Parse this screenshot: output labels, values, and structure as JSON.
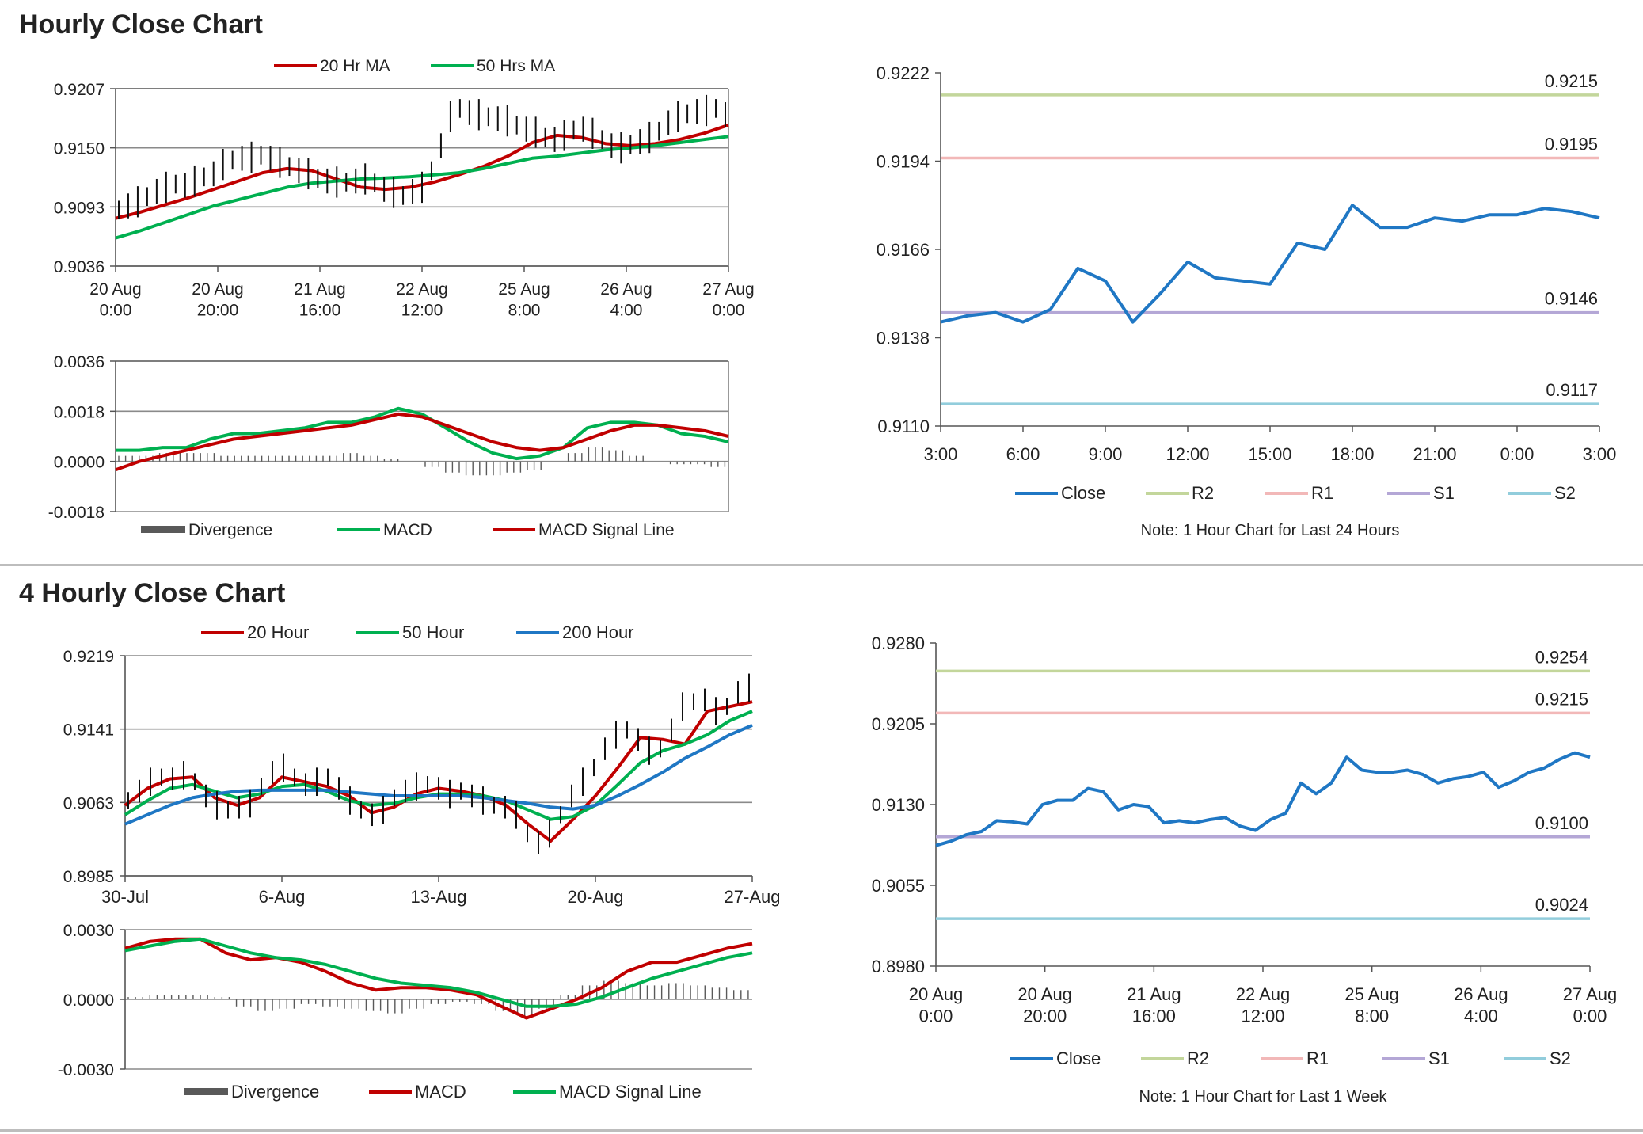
{
  "sections": [
    {
      "title": "Hourly Close Chart"
    },
    {
      "title": "4 Hourly Close Chart"
    }
  ],
  "chart_data": [
    {
      "id": "hourly-price",
      "type": "line",
      "title": "",
      "xlabel": "",
      "ylabel": "",
      "ylim": [
        0.9036,
        0.9207
      ],
      "yticks": [
        "0.9207",
        "0.9150",
        "0.9093",
        "0.9036"
      ],
      "xticks": [
        "20 Aug\n0:00",
        "20 Aug\n20:00",
        "21 Aug\n16:00",
        "22 Aug\n12:00",
        "25 Aug\n8:00",
        "26 Aug\n4:00",
        "27 Aug\n0:00"
      ],
      "legend": [
        {
          "name": "20 Hr MA",
          "color": "#c00000"
        },
        {
          "name": "50 Hrs MA",
          "color": "#00b050"
        }
      ],
      "legend_position": "top",
      "grid": "horizontal",
      "price_series": {
        "name": "",
        "color": "#111111",
        "values": [
          0.909,
          0.9094,
          0.9098,
          0.9103,
          0.9108,
          0.9112,
          0.9115,
          0.9114,
          0.9118,
          0.9122,
          0.9125,
          0.9134,
          0.9138,
          0.914,
          0.9141,
          0.9143,
          0.914,
          0.9136,
          0.9132,
          0.9128,
          0.9125,
          0.912,
          0.9118,
          0.9117,
          0.9117,
          0.9118,
          0.912,
          0.9116,
          0.911,
          0.9107,
          0.9104,
          0.9108,
          0.9112,
          0.9128,
          0.9152,
          0.918,
          0.9188,
          0.9184,
          0.9182,
          0.918,
          0.9178,
          0.9176,
          0.9172,
          0.9168,
          0.9165,
          0.916,
          0.9158,
          0.9162,
          0.9167,
          0.9168,
          0.9164,
          0.9158,
          0.9152,
          0.915,
          0.9153,
          0.9156,
          0.916,
          0.9166,
          0.9174,
          0.918,
          0.9183,
          0.9185,
          0.9186,
          0.9188,
          0.9182
        ]
      },
      "series": [
        {
          "name": "20 Hr MA",
          "color": "#c00000",
          "values": [
            0.9082,
            0.9088,
            0.9095,
            0.9102,
            0.911,
            0.9118,
            0.9126,
            0.913,
            0.9128,
            0.912,
            0.9112,
            0.911,
            0.9112,
            0.9117,
            0.9124,
            0.9132,
            0.9142,
            0.9155,
            0.9162,
            0.916,
            0.9154,
            0.9152,
            0.9154,
            0.9158,
            0.9164,
            0.9172
          ]
        },
        {
          "name": "50 Hrs MA",
          "color": "#00b050",
          "values": [
            0.9063,
            0.907,
            0.9078,
            0.9086,
            0.9094,
            0.91,
            0.9106,
            0.9112,
            0.9116,
            0.9118,
            0.912,
            0.9121,
            0.9122,
            0.9124,
            0.9126,
            0.913,
            0.9135,
            0.914,
            0.9142,
            0.9145,
            0.9148,
            0.915,
            0.9152,
            0.9155,
            0.9158,
            0.9161
          ]
        }
      ]
    },
    {
      "id": "hourly-macd",
      "type": "line",
      "title": "",
      "ylim": [
        -0.0018,
        0.0036
      ],
      "yticks": [
        "0.0036",
        "0.0018",
        "0.0000",
        "-0.0018"
      ],
      "legend": [
        {
          "name": "Divergence",
          "color": "#595959"
        },
        {
          "name": "MACD",
          "color": "#00b050"
        },
        {
          "name": "MACD Signal Line",
          "color": "#c00000"
        }
      ],
      "legend_position": "bottom",
      "grid": "horizontal",
      "divergence": [
        0.0002,
        0.0002,
        0.0003,
        0.0003,
        0.0003,
        0.0002,
        0.0002,
        0.0002,
        0.0002,
        0.0002,
        0.0002,
        0.0003,
        0.0002,
        0.0001,
        0.0,
        -0.0002,
        -0.0004,
        -0.0005,
        -0.0005,
        -0.0004,
        -0.0003,
        0.0,
        0.0003,
        0.0005,
        0.0004,
        0.0002,
        0.0,
        -0.0001,
        -0.0001,
        -0.0002
      ],
      "series": [
        {
          "name": "MACD",
          "color": "#00b050",
          "values": [
            0.0004,
            0.0004,
            0.0005,
            0.0005,
            0.0008,
            0.001,
            0.001,
            0.0011,
            0.0012,
            0.0014,
            0.0014,
            0.0016,
            0.0019,
            0.0017,
            0.0012,
            0.0007,
            0.0003,
            0.0001,
            0.0002,
            0.0005,
            0.0012,
            0.0014,
            0.0014,
            0.0013,
            0.001,
            0.0009,
            0.0007
          ]
        },
        {
          "name": "MACD Signal Line",
          "color": "#c00000",
          "values": [
            -0.0003,
            0.0,
            0.0002,
            0.0004,
            0.0006,
            0.0008,
            0.0009,
            0.001,
            0.0011,
            0.0012,
            0.0013,
            0.0015,
            0.0017,
            0.0016,
            0.0013,
            0.001,
            0.0007,
            0.0005,
            0.0004,
            0.0005,
            0.0008,
            0.0011,
            0.0013,
            0.0013,
            0.0012,
            0.0011,
            0.0009
          ]
        }
      ]
    },
    {
      "id": "hourly-levels",
      "type": "line",
      "title": "",
      "ylim": [
        0.911,
        0.9222
      ],
      "yticks": [
        "0.9222",
        "0.9194",
        "0.9166",
        "0.9138",
        "0.9110"
      ],
      "xticks": [
        "3:00",
        "6:00",
        "9:00",
        "12:00",
        "15:00",
        "18:00",
        "21:00",
        "0:00",
        "3:00"
      ],
      "legend": [
        {
          "name": "Close",
          "color": "#1f77c4"
        },
        {
          "name": "R2",
          "color": "#c3d69b"
        },
        {
          "name": "R1",
          "color": "#f2b8b8"
        },
        {
          "name": "S1",
          "color": "#b4a7d6"
        },
        {
          "name": "S2",
          "color": "#92cddc"
        }
      ],
      "legend_position": "bottom",
      "note": "Note: 1 Hour Chart for Last 24 Hours",
      "series": [
        {
          "name": "Close",
          "color": "#1f77c4",
          "values": [
            0.9143,
            0.9145,
            0.9146,
            0.9143,
            0.9147,
            0.916,
            0.9156,
            0.9143,
            0.9152,
            0.9162,
            0.9157,
            0.9156,
            0.9155,
            0.9168,
            0.9166,
            0.918,
            0.9173,
            0.9173,
            0.9176,
            0.9175,
            0.9177,
            0.9177,
            0.9179,
            0.9178,
            0.9176
          ]
        }
      ],
      "levels": [
        {
          "name": "R2",
          "value": 0.9215,
          "label": "0.9215",
          "color": "#c3d69b"
        },
        {
          "name": "R1",
          "value": 0.9195,
          "label": "0.9195",
          "color": "#f2b8b8"
        },
        {
          "name": "S1",
          "value": 0.9146,
          "label": "0.9146",
          "color": "#b4a7d6"
        },
        {
          "name": "S2",
          "value": 0.9117,
          "label": "0.9117",
          "color": "#92cddc"
        }
      ]
    },
    {
      "id": "four-hourly-price",
      "type": "line",
      "title": "",
      "ylim": [
        0.8985,
        0.9219
      ],
      "yticks": [
        "0.9219",
        "0.9141",
        "0.9063",
        "0.8985"
      ],
      "xticks": [
        "30-Jul",
        "6-Aug",
        "13-Aug",
        "20-Aug",
        "27-Aug"
      ],
      "legend": [
        {
          "name": "20 Hour",
          "color": "#c00000"
        },
        {
          "name": "50 Hour",
          "color": "#00b050"
        },
        {
          "name": "200 Hour",
          "color": "#1f77c4"
        }
      ],
      "legend_position": "top",
      "grid": "horizontal",
      "price_series": {
        "name": "",
        "color": "#111111",
        "values": [
          0.9065,
          0.9075,
          0.9085,
          0.909,
          0.9088,
          0.9092,
          0.9085,
          0.907,
          0.906,
          0.9055,
          0.9058,
          0.9062,
          0.908,
          0.9095,
          0.91,
          0.909,
          0.9082,
          0.9085,
          0.909,
          0.9078,
          0.9065,
          0.9055,
          0.905,
          0.9055,
          0.9068,
          0.9075,
          0.908,
          0.9082,
          0.9078,
          0.9072,
          0.9075,
          0.907,
          0.9065,
          0.906,
          0.9058,
          0.905,
          0.903,
          0.902,
          0.903,
          0.905,
          0.907,
          0.9085,
          0.91,
          0.912,
          0.9135,
          0.914,
          0.913,
          0.9118,
          0.912,
          0.914,
          0.9165,
          0.917,
          0.9172,
          0.916,
          0.9165,
          0.918,
          0.9185
        ]
      },
      "series": [
        {
          "name": "20 Hour",
          "color": "#c00000",
          "values": [
            0.906,
            0.9078,
            0.9088,
            0.909,
            0.9068,
            0.906,
            0.9068,
            0.909,
            0.9085,
            0.908,
            0.907,
            0.9052,
            0.9058,
            0.9072,
            0.9078,
            0.9075,
            0.907,
            0.906,
            0.904,
            0.9022,
            0.9045,
            0.907,
            0.91,
            0.9132,
            0.913,
            0.9125,
            0.916,
            0.9165,
            0.917
          ]
        },
        {
          "name": "50 Hour",
          "color": "#00b050",
          "values": [
            0.905,
            0.9065,
            0.9078,
            0.9082,
            0.9075,
            0.9068,
            0.9072,
            0.908,
            0.9082,
            0.9075,
            0.9065,
            0.906,
            0.9062,
            0.9068,
            0.9072,
            0.9072,
            0.907,
            0.9065,
            0.9055,
            0.9045,
            0.9048,
            0.906,
            0.9082,
            0.9105,
            0.9118,
            0.9125,
            0.9135,
            0.915,
            0.916
          ]
        },
        {
          "name": "200 Hour",
          "color": "#1f77c4",
          "values": [
            0.904,
            0.905,
            0.906,
            0.9068,
            0.9072,
            0.9075,
            0.9076,
            0.9076,
            0.9076,
            0.9076,
            0.9074,
            0.9072,
            0.907,
            0.907,
            0.907,
            0.907,
            0.9068,
            0.9065,
            0.9062,
            0.9058,
            0.9056,
            0.906,
            0.907,
            0.9082,
            0.9095,
            0.911,
            0.9122,
            0.9135,
            0.9145
          ]
        }
      ]
    },
    {
      "id": "four-hourly-macd",
      "type": "line",
      "title": "",
      "ylim": [
        -0.003,
        0.003
      ],
      "yticks": [
        "0.0030",
        "0.0000",
        "-0.0030"
      ],
      "xticks": [],
      "legend": [
        {
          "name": "Divergence",
          "color": "#595959"
        },
        {
          "name": "MACD",
          "color": "#c00000"
        },
        {
          "name": "MACD Signal Line",
          "color": "#00b050"
        }
      ],
      "legend_position": "bottom",
      "grid": "horizontal",
      "divergence": [
        0.0001,
        0.0002,
        0.0002,
        0.0002,
        0.0001,
        -0.0003,
        -0.0005,
        -0.0004,
        -0.0002,
        -0.0003,
        -0.0004,
        -0.0005,
        -0.0006,
        -0.0004,
        -0.0002,
        -0.0001,
        -0.0002,
        -0.0005,
        -0.0007,
        -0.0004,
        0.0002,
        0.0006,
        0.0008,
        0.0007,
        0.0006,
        0.0007,
        0.0006,
        0.0005,
        0.0004
      ],
      "series": [
        {
          "name": "MACD",
          "color": "#c00000",
          "values": [
            0.0022,
            0.0025,
            0.0026,
            0.0026,
            0.002,
            0.0017,
            0.0018,
            0.0016,
            0.0012,
            0.0007,
            0.0004,
            0.0005,
            0.0005,
            0.0004,
            0.0002,
            -0.0003,
            -0.0008,
            -0.0004,
            0.0,
            0.0005,
            0.0012,
            0.0016,
            0.0016,
            0.0019,
            0.0022,
            0.0024
          ]
        },
        {
          "name": "MACD Signal Line",
          "color": "#00b050",
          "values": [
            0.0021,
            0.0023,
            0.0025,
            0.0026,
            0.0023,
            0.002,
            0.0018,
            0.0017,
            0.0015,
            0.0012,
            0.0009,
            0.0007,
            0.0006,
            0.0005,
            0.0003,
            0.0,
            -0.0003,
            -0.0003,
            -0.0002,
            0.0001,
            0.0005,
            0.0009,
            0.0012,
            0.0015,
            0.0018,
            0.002
          ]
        }
      ]
    },
    {
      "id": "four-hourly-levels",
      "type": "line",
      "title": "",
      "ylim": [
        0.898,
        0.928
      ],
      "yticks": [
        "0.9280",
        "0.9205",
        "0.9130",
        "0.9055",
        "0.8980"
      ],
      "xticks": [
        "20 Aug\n0:00",
        "20 Aug\n20:00",
        "21 Aug\n16:00",
        "22 Aug\n12:00",
        "25 Aug\n8:00",
        "26 Aug\n4:00",
        "27 Aug\n0:00"
      ],
      "legend": [
        {
          "name": "Close",
          "color": "#1f77c4"
        },
        {
          "name": "R2",
          "color": "#c3d69b"
        },
        {
          "name": "R1",
          "color": "#f2b8b8"
        },
        {
          "name": "S1",
          "color": "#b4a7d6"
        },
        {
          "name": "S2",
          "color": "#92cddc"
        }
      ],
      "legend_position": "bottom",
      "note": "Note: 1 Hour Chart for Last 1 Week",
      "series": [
        {
          "name": "Close",
          "color": "#1f77c4",
          "values": [
            0.9092,
            0.9096,
            0.9102,
            0.9105,
            0.9115,
            0.9114,
            0.9112,
            0.913,
            0.9134,
            0.9134,
            0.9145,
            0.9142,
            0.9125,
            0.913,
            0.9128,
            0.9113,
            0.9115,
            0.9113,
            0.9116,
            0.9118,
            0.911,
            0.9106,
            0.9116,
            0.9122,
            0.915,
            0.914,
            0.915,
            0.9174,
            0.9162,
            0.916,
            0.916,
            0.9162,
            0.9158,
            0.915,
            0.9154,
            0.9156,
            0.916,
            0.9146,
            0.9152,
            0.916,
            0.9164,
            0.9172,
            0.9178,
            0.9174
          ]
        }
      ],
      "levels": [
        {
          "name": "R2",
          "value": 0.9254,
          "label": "0.9254",
          "color": "#c3d69b"
        },
        {
          "name": "R1",
          "value": 0.9215,
          "label": "0.9215",
          "color": "#f2b8b8"
        },
        {
          "name": "S1",
          "value": 0.91,
          "label": "0.9100",
          "color": "#b4a7d6"
        },
        {
          "name": "S2",
          "value": 0.9024,
          "label": "0.9024",
          "color": "#92cddc"
        }
      ]
    }
  ]
}
